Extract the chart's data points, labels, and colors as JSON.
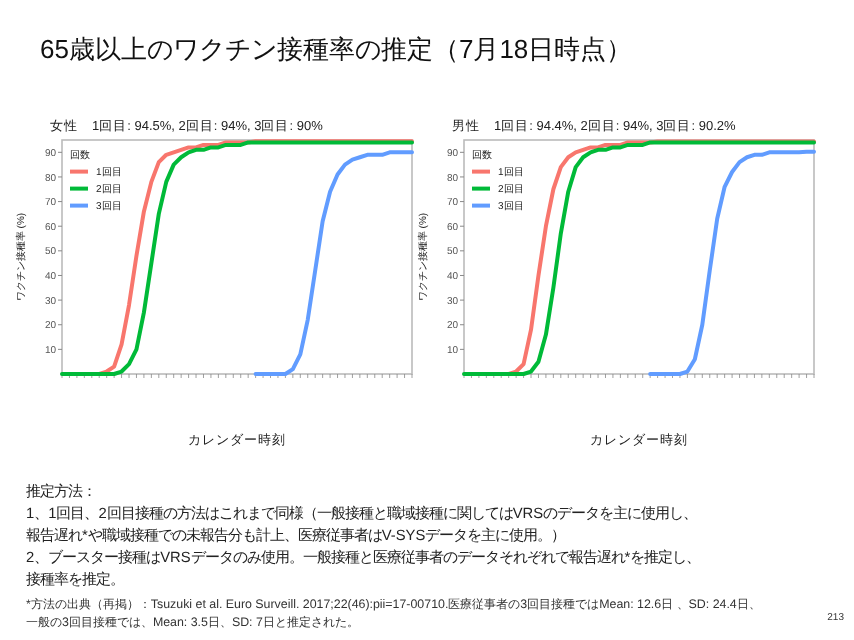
{
  "chart_data": [
    {
      "type": "line",
      "title": "女性　1回目: 94.5%, 2回目: 94%, 3回目: 90%",
      "ylabel": "ワクチン接種率 (%)",
      "xlabel": "カレンダー時刻",
      "legend_title": "回数",
      "legend": "top left",
      "grid": false,
      "ylim": [
        0,
        95
      ],
      "yticks": [
        10,
        20,
        30,
        40,
        50,
        60,
        70,
        80,
        90
      ],
      "categories": [
        null,
        null,
        null,
        null,
        null,
        null,
        null,
        null,
        null,
        null,
        null,
        null,
        null,
        null,
        null,
        null,
        null,
        null,
        null,
        null,
        null,
        null,
        null,
        null,
        null,
        null,
        null,
        null,
        null,
        null,
        null,
        null,
        null,
        null,
        null,
        null,
        null,
        null,
        null,
        null,
        null,
        null,
        null,
        null,
        null,
        null,
        null,
        null
      ],
      "annotations": [
        "65歳以上のワクチン接種率の推定（7月18日時点）",
        "推定方法：",
        "1、1回目、2回目接種の方法はこれまで同様（一般接種と職域接種に関してはVRSのデータを主に使用し、",
        "報告遅れ*や職域接種での未報告分も計上、医療従事者はV-SYSデータを主に使用。）",
        "2、ブースター接種はVRSデータのみ使用。一般接種と医療従事者のデータそれぞれで報告遅れ*を推定し、",
        "接種率を推定。",
        "*方法の出典（再掲）：Tsuzuki et al. Euro Surveill. 2017;22(46):pii=17-00710.医療従事者の3回目接種ではMean: 12.6日 、SD: 24.4日、",
        "一般の3回目接種では、Mean: 3.5日、SD: 7日と推定された。",
        "213"
      ],
      "series": [
        {
          "name": "1回目",
          "color": "#f8766d",
          "values": [
            null,
            null,
            null,
            null,
            null,
            0,
            1,
            3,
            12,
            28,
            48,
            66,
            78,
            86,
            89,
            90,
            91,
            92,
            92,
            93,
            93,
            93,
            94,
            94,
            94,
            94,
            94.5,
            94.5,
            94.5,
            94.5,
            94.5,
            94.5,
            94.5,
            94.5,
            94.5,
            94.5,
            94.5,
            94.5,
            94.5,
            94.5,
            94.5,
            94.5,
            94.5,
            94.5,
            94.5,
            94.5,
            94.5,
            94.5
          ]
        },
        {
          "name": "2回目",
          "color": "#00ba38",
          "values": [
            0,
            0,
            0,
            0,
            0,
            0,
            0,
            0,
            1,
            4,
            10,
            25,
            45,
            65,
            78,
            85,
            88,
            90,
            91,
            91,
            92,
            92,
            93,
            93,
            93,
            94,
            94,
            94,
            94,
            94,
            94,
            94,
            94,
            94,
            94,
            94,
            94,
            94,
            94,
            94,
            94,
            94,
            94,
            94,
            94,
            94,
            94,
            94
          ]
        },
        {
          "name": "3回目",
          "color": "#619cff",
          "values": [
            null,
            null,
            null,
            null,
            null,
            null,
            null,
            null,
            null,
            null,
            null,
            null,
            null,
            null,
            null,
            null,
            null,
            null,
            null,
            null,
            null,
            null,
            null,
            null,
            null,
            null,
            0,
            0,
            0,
            0,
            0,
            2,
            8,
            22,
            42,
            62,
            74,
            81,
            85,
            87,
            88,
            89,
            89,
            89,
            90,
            90,
            90,
            90
          ]
        }
      ]
    },
    {
      "type": "line",
      "title": "男性　1回目: 94.4%, 2回目: 94%, 3回目: 90.2%",
      "ylabel": "ワクチン接種率 (%)",
      "xlabel": "カレンダー時刻",
      "legend_title": "回数",
      "legend": "top left",
      "grid": false,
      "ylim": [
        0,
        95
      ],
      "yticks": [
        10,
        20,
        30,
        40,
        50,
        60,
        70,
        80,
        90
      ],
      "categories": [
        null,
        null,
        null,
        null,
        null,
        null,
        null,
        null,
        null,
        null,
        null,
        null,
        null,
        null,
        null,
        null,
        null,
        null,
        null,
        null,
        null,
        null,
        null,
        null,
        null,
        null,
        null,
        null,
        null,
        null,
        null,
        null,
        null,
        null,
        null,
        null,
        null,
        null,
        null,
        null,
        null,
        null,
        null,
        null,
        null,
        null,
        null,
        null
      ],
      "series": [
        {
          "name": "1回目",
          "color": "#f8766d",
          "values": [
            null,
            null,
            null,
            null,
            null,
            null,
            0,
            1,
            4,
            18,
            40,
            60,
            75,
            84,
            88,
            90,
            91,
            92,
            92,
            93,
            93,
            93,
            94,
            94,
            94,
            94,
            94.4,
            94.4,
            94.4,
            94.4,
            94.4,
            94.4,
            94.4,
            94.4,
            94.4,
            94.4,
            94.4,
            94.4,
            94.4,
            94.4,
            94.4,
            94.4,
            94.4,
            94.4,
            94.4,
            94.4,
            94.4,
            94.4
          ]
        },
        {
          "name": "2回目",
          "color": "#00ba38",
          "values": [
            0,
            0,
            0,
            0,
            0,
            0,
            0,
            0,
            0,
            1,
            5,
            16,
            35,
            57,
            74,
            84,
            88,
            90,
            91,
            91,
            92,
            92,
            93,
            93,
            93,
            94,
            94,
            94,
            94,
            94,
            94,
            94,
            94,
            94,
            94,
            94,
            94,
            94,
            94,
            94,
            94,
            94,
            94,
            94,
            94,
            94,
            94,
            94
          ]
        },
        {
          "name": "3回目",
          "color": "#619cff",
          "values": [
            null,
            null,
            null,
            null,
            null,
            null,
            null,
            null,
            null,
            null,
            null,
            null,
            null,
            null,
            null,
            null,
            null,
            null,
            null,
            null,
            null,
            null,
            null,
            null,
            null,
            0,
            0,
            0,
            0,
            0,
            1,
            6,
            20,
            42,
            63,
            76,
            82,
            86,
            88,
            89,
            89,
            90,
            90,
            90,
            90,
            90,
            90.2,
            90.2
          ]
        }
      ]
    }
  ]
}
